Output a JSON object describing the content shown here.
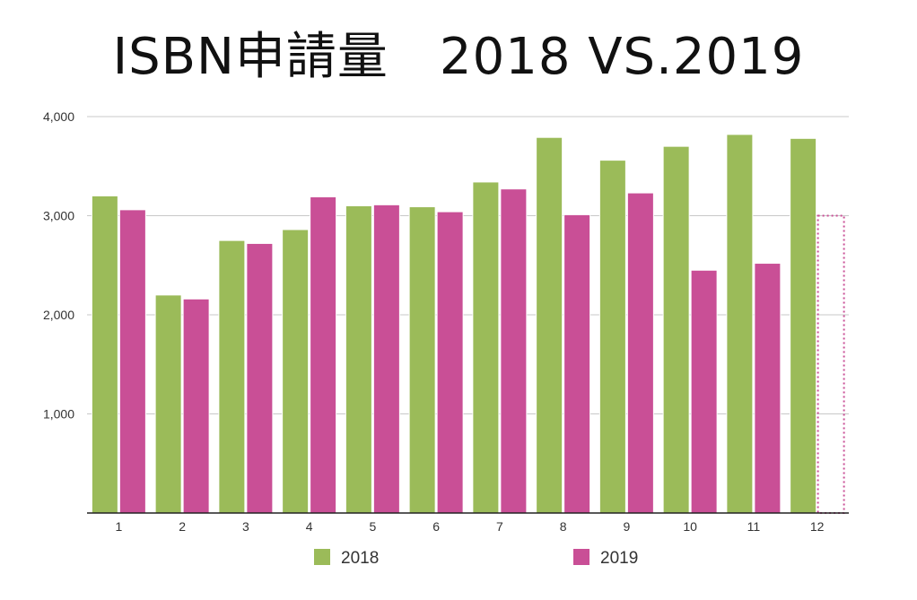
{
  "chart_data": {
    "type": "bar",
    "title": "ISBN申請量　2018 VS.2019",
    "xlabel": "",
    "ylabel": "",
    "categories": [
      "1",
      "2",
      "3",
      "4",
      "5",
      "6",
      "7",
      "8",
      "9",
      "10",
      "11",
      "12"
    ],
    "series": [
      {
        "name": "2018",
        "color": "#9bbb59",
        "values": [
          3200,
          2200,
          2750,
          2860,
          3100,
          3090,
          3340,
          3790,
          3560,
          3700,
          3820,
          3780
        ]
      },
      {
        "name": "2019",
        "color": "#c94f96",
        "values": [
          3060,
          2160,
          2720,
          3190,
          3110,
          3040,
          3270,
          3010,
          3230,
          2450,
          2520,
          null
        ]
      }
    ],
    "placeholder": {
      "series": "2019",
      "category": "12",
      "value": 3000,
      "style": "dotted-outline"
    },
    "ylim": [
      0,
      4000
    ],
    "yticks": [
      {
        "value": 1000,
        "label": "1,000"
      },
      {
        "value": 2000,
        "label": "2,000"
      },
      {
        "value": 3000,
        "label": "3,000"
      },
      {
        "value": 4000,
        "label": "4,000"
      }
    ],
    "grid": true,
    "legend_position": "bottom"
  }
}
